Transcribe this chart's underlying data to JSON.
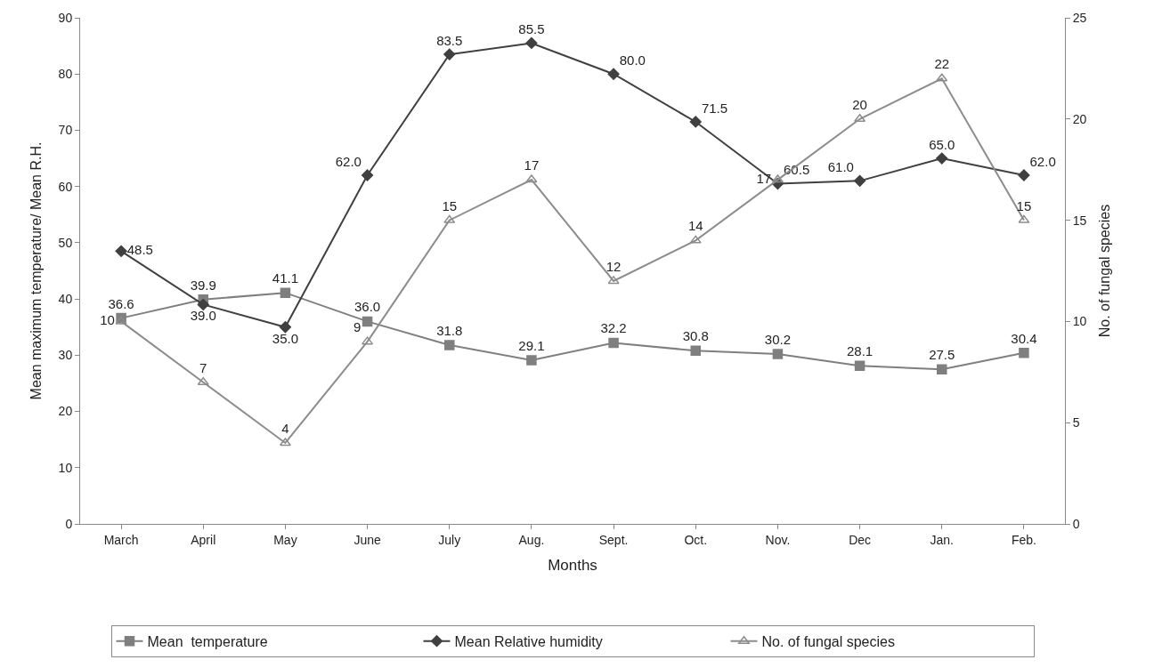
{
  "chart_data": {
    "type": "line",
    "xlabel": "Months",
    "ylabel": "Mean maximum temperature/ Mean R.H.",
    "y2label": "No. of fungal species",
    "categories": [
      "March",
      "April",
      "May",
      "June",
      "July",
      "Aug.",
      "Sept.",
      "Oct.",
      "Nov.",
      "Dec",
      "Jan.",
      "Feb."
    ],
    "series": [
      {
        "name": "Mean  temperature",
        "color": "#7f7f7f",
        "marker": "square",
        "values": [
          36.6,
          39.9,
          41.1,
          36.0,
          31.8,
          29.1,
          32.2,
          30.8,
          30.2,
          28.1,
          27.5,
          30.4
        ],
        "value_labels": [
          "36.6",
          "39.9",
          "41.1",
          "36.0",
          "31.8",
          "29.1",
          "32.2",
          "30.8",
          "30.2",
          "28.1",
          "27.5",
          "30.4"
        ]
      },
      {
        "name": "Mean Relative humidity",
        "color": "#404040",
        "marker": "diamond",
        "values": [
          48.5,
          39.0,
          35.0,
          62.0,
          83.5,
          85.5,
          80.0,
          71.5,
          60.5,
          61.0,
          65.0,
          62.0
        ],
        "value_labels": [
          "48.5",
          "39.0",
          "35.0",
          "62.0",
          "83.5",
          "85.5",
          "80.0",
          "71.5",
          "60.5",
          "61.0",
          "65.0",
          "62.0"
        ]
      },
      {
        "name": "No. of fungal species",
        "color": "#8c8c8c",
        "marker": "triangle",
        "axis": "y2",
        "values": [
          10,
          7,
          4,
          9,
          15,
          17,
          12,
          14,
          17,
          20,
          22,
          15
        ],
        "value_labels": [
          "10",
          "7",
          "4",
          "9",
          "15",
          "17",
          "12",
          "14",
          "17",
          "20",
          "22",
          "15"
        ]
      }
    ],
    "ylim": [
      0,
      90
    ],
    "yticks": [
      0,
      10,
      20,
      30,
      40,
      50,
      60,
      70,
      80,
      90
    ],
    "y2lim": [
      0,
      25
    ],
    "y2ticks": [
      0,
      5,
      10,
      15,
      20,
      25
    ],
    "legend": "bottom"
  }
}
